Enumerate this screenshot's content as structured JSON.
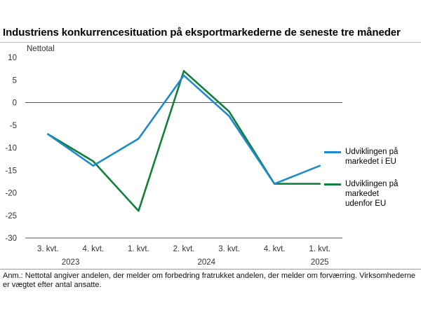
{
  "chart_data": {
    "type": "line",
    "title": "Industriens konkurrencesituation på eksportmarkederne de seneste tre måneder",
    "ylabel": "Nettotal",
    "xlabel": "",
    "ylim": [
      -30,
      10
    ],
    "yticks": [
      10,
      5,
      0,
      -5,
      -10,
      -15,
      -20,
      -25,
      -30
    ],
    "categories": [
      "3. kvt.",
      "4. kvt.",
      "1. kvt.",
      "2. kvt.",
      "3. kvt.",
      "4. kvt.",
      "1. kvt."
    ],
    "year_labels": [
      "2023",
      "2024",
      "2025"
    ],
    "series": [
      {
        "name": "Udviklingen på markedet i EU",
        "color": "#1f8ac9",
        "values": [
          -7,
          -14,
          -8,
          6,
          -3,
          -18,
          -14
        ]
      },
      {
        "name": "Udviklingen på markedet udenfor EU",
        "color": "#137f3b",
        "values": [
          -7,
          -13,
          -24,
          7,
          -2,
          -18,
          -18
        ]
      }
    ],
    "grid": false,
    "legend": "right"
  },
  "legend": {
    "eu_line1": "Udviklingen på",
    "eu_line2": "markedet i EU",
    "non_eu_line1": "Udviklingen på",
    "non_eu_line2": "markedet",
    "non_eu_line3": "udenfor EU"
  },
  "note": "Anm.: Nettotal angiver andelen, der melder om forbedring fratrukket andelen, der melder om forværring. Virksomhederne er vægtet efter antal ansatte."
}
